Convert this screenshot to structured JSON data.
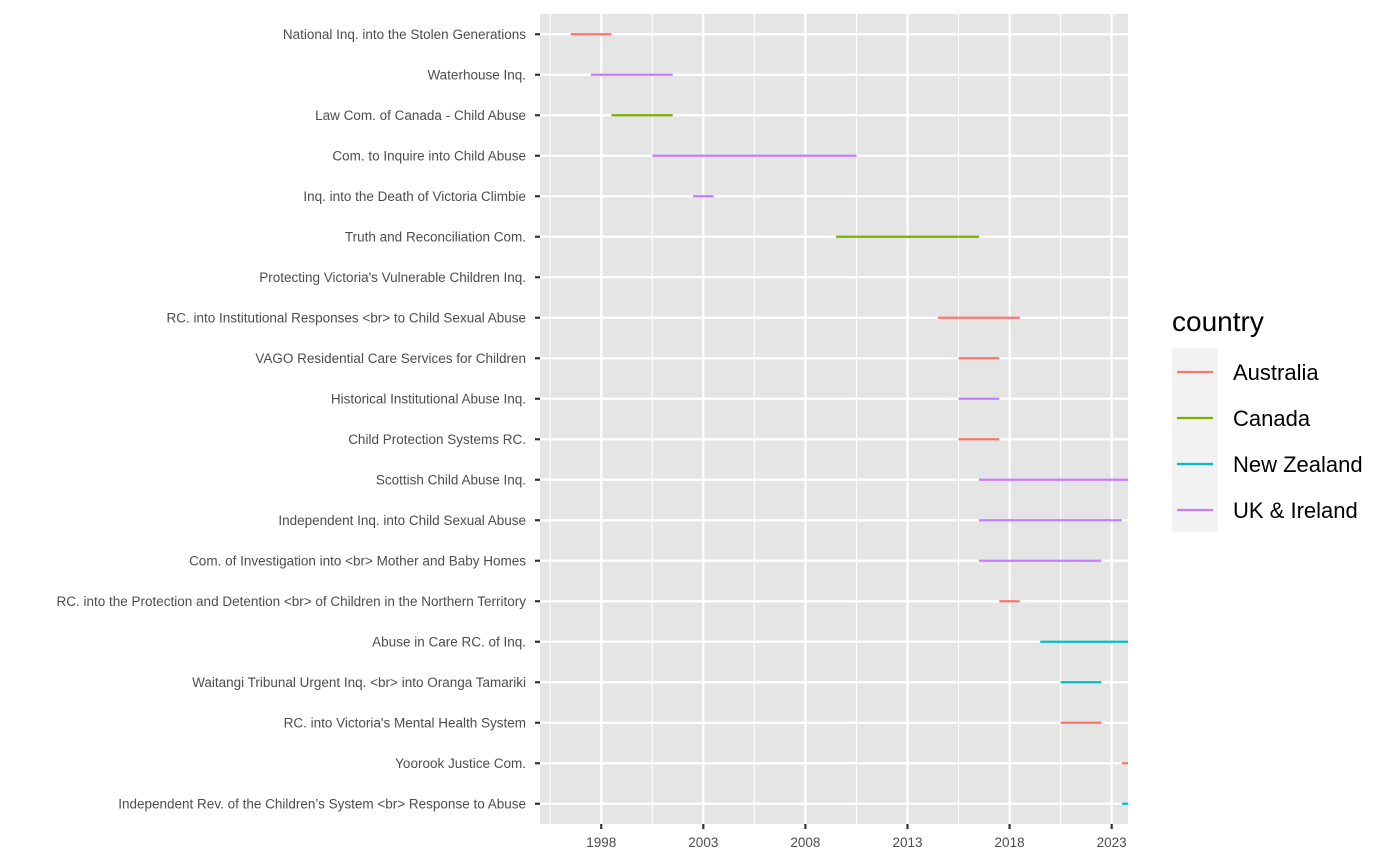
{
  "chart_data": {
    "type": "timeline",
    "xlim": [
      1995,
      2023.8
    ],
    "x_ticks": [
      1998,
      2003,
      2008,
      2013,
      2018,
      2023
    ],
    "x_minor": [
      1995.5,
      2000.5,
      2005.5,
      2010.5,
      2015.5,
      2020.5
    ],
    "grid": true,
    "legend": {
      "title": "country",
      "position": "right",
      "entries": [
        {
          "name": "Australia",
          "color": "#F8766D"
        },
        {
          "name": "Canada",
          "color": "#7CAE00"
        },
        {
          "name": "New Zealand",
          "color": "#00BFC4"
        },
        {
          "name": "UK & Ireland",
          "color": "#C77CFF"
        }
      ]
    },
    "inquiries": [
      {
        "name": "National Inq. into the Stolen Generations",
        "country": "Australia",
        "start": 1996.5,
        "end": 1998.5
      },
      {
        "name": "Waterhouse Inq.",
        "country": "UK & Ireland",
        "start": 1997.5,
        "end": 2001.5
      },
      {
        "name": "Law Com. of Canada - Child Abuse",
        "country": "Canada",
        "start": 1998.5,
        "end": 2001.5
      },
      {
        "name": "Com. to Inquire into Child Abuse",
        "country": "UK & Ireland",
        "start": 2000.5,
        "end": 2010.5
      },
      {
        "name": "Inq. into the Death of Victoria Climbie",
        "country": "UK & Ireland",
        "start": 2002.5,
        "end": 2003.5
      },
      {
        "name": "Truth and Reconciliation Com.",
        "country": "Canada",
        "start": 2009.5,
        "end": 2016.5
      },
      {
        "name": "Protecting Victoria's Vulnerable Children Inq.",
        "country": "Australia",
        "start": null,
        "end": null
      },
      {
        "name": "RC. into Institutional Responses <br> to Child Sexual Abuse",
        "country": "Australia",
        "start": 2014.5,
        "end": 2018.5
      },
      {
        "name": "VAGO Residential Care Services for Children",
        "country": "Australia",
        "start": 2015.5,
        "end": 2017.5
      },
      {
        "name": "Historical Institutional Abuse Inq.",
        "country": "UK & Ireland",
        "start": 2015.5,
        "end": 2017.5
      },
      {
        "name": "Child Protection Systems RC.",
        "country": "Australia",
        "start": 2015.5,
        "end": 2017.5
      },
      {
        "name": "Scottish Child Abuse Inq.",
        "country": "UK & Ireland",
        "start": 2016.5,
        "end": 2024.8
      },
      {
        "name": "Independent Inq. into Child Sexual Abuse",
        "country": "UK & Ireland",
        "start": 2016.5,
        "end": 2023.5
      },
      {
        "name": "Com. of Investigation into <br> Mother and Baby Homes",
        "country": "UK & Ireland",
        "start": 2016.5,
        "end": 2022.5
      },
      {
        "name": "RC. into the Protection and Detention <br> of Children in the Northern Territory",
        "country": "Australia",
        "start": 2017.5,
        "end": 2018.5
      },
      {
        "name": "Abuse in Care RC. of Inq.",
        "country": "New Zealand",
        "start": 2019.5,
        "end": 2024.5
      },
      {
        "name": "Waitangi Tribunal Urgent Inq. <br> into Oranga Tamariki",
        "country": "New Zealand",
        "start": 2020.5,
        "end": 2022.5
      },
      {
        "name": "RC. into Victoria's Mental Health System",
        "country": "Australia",
        "start": 2020.5,
        "end": 2022.5
      },
      {
        "name": "Yoorook Justice Com.",
        "country": "Australia",
        "start": 2023.5,
        "end": 2024.8
      },
      {
        "name": "Independent Rev. of the Children’s System <br> Response to Abuse",
        "country": "New Zealand",
        "start": 2023.5,
        "end": 2024.5
      }
    ]
  }
}
